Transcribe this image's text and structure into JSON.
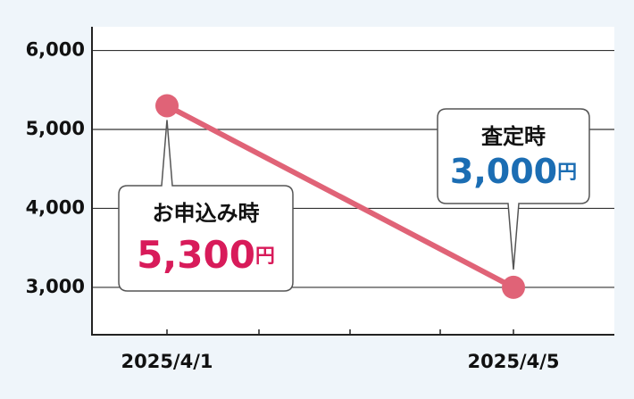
{
  "chart_data": {
    "type": "line",
    "categories": [
      "2025/4/1",
      "2025/4/5"
    ],
    "series": [
      {
        "color": "#e06377",
        "values": [
          5300,
          3000
        ],
        "value_labels": [
          "5,300",
          "3,000"
        ]
      }
    ],
    "value_unit": "円",
    "annotations": [
      {
        "text": "お申込み時",
        "color": "#d81b5a"
      },
      {
        "text": "査定時",
        "color": "#1b6db3"
      }
    ],
    "ylim": [
      2400,
      6300
    ],
    "yticks": [
      {
        "value": 3000,
        "label": "3,000"
      },
      {
        "value": 4000,
        "label": "4,000"
      },
      {
        "value": 5000,
        "label": "5,000"
      },
      {
        "value": 6000,
        "label": "6,000"
      }
    ],
    "grid": true
  }
}
